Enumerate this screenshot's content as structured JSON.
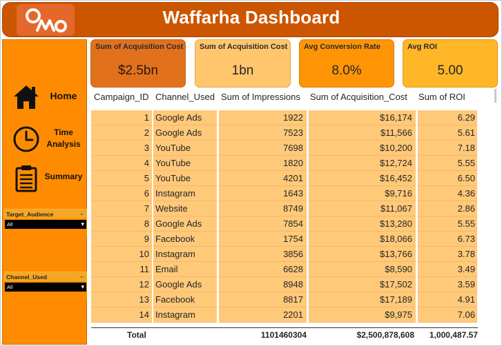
{
  "header": {
    "title": "Waffarha Dashboard",
    "logo_text": "OWO",
    "colors": {
      "header_bg": "#cc5500",
      "sidebar_bg": "#ff8c00"
    }
  },
  "sidebar": {
    "nav": [
      {
        "label": "Home",
        "icon": "house-icon"
      },
      {
        "label": "Time Analysis",
        "icon": "clock-icon"
      },
      {
        "label": "Summary",
        "icon": "clipboard-icon"
      }
    ],
    "slicers": [
      {
        "title": "Target_Audience",
        "value": "All"
      },
      {
        "title": "Channel_Used",
        "value": "All"
      }
    ]
  },
  "cards": [
    {
      "title": "Sum of Acquisition Cost",
      "value": "$2.5bn"
    },
    {
      "title": "Sum of Acquisition Cost",
      "value": "1bn"
    },
    {
      "title": "Avg Conversion Rate",
      "value": "8.0%"
    },
    {
      "title": "Avg ROI",
      "value": "5.00"
    }
  ],
  "table": {
    "columns": [
      "Campaign_ID",
      "Channel_Used",
      "Sum of Impressions",
      "Sum of Acquisition_Cost",
      "Sum of ROI"
    ],
    "rows": [
      [
        "1",
        "Google Ads",
        "1922",
        "$16,174",
        "6.29"
      ],
      [
        "2",
        "Google Ads",
        "7523",
        "$11,566",
        "5.61"
      ],
      [
        "3",
        "YouTube",
        "7698",
        "$10,200",
        "7.18"
      ],
      [
        "4",
        "YouTube",
        "1820",
        "$12,724",
        "5.55"
      ],
      [
        "5",
        "YouTube",
        "4201",
        "$16,452",
        "6.50"
      ],
      [
        "6",
        "Instagram",
        "1643",
        "$9,716",
        "4.36"
      ],
      [
        "7",
        "Website",
        "8749",
        "$11,067",
        "2.86"
      ],
      [
        "8",
        "Google Ads",
        "7854",
        "$13,280",
        "5.55"
      ],
      [
        "9",
        "Facebook",
        "1754",
        "$18,066",
        "6.73"
      ],
      [
        "10",
        "Instagram",
        "3856",
        "$13,766",
        "3.78"
      ],
      [
        "11",
        "Email",
        "6628",
        "$8,590",
        "3.49"
      ],
      [
        "12",
        "Google Ads",
        "8948",
        "$17,502",
        "3.59"
      ],
      [
        "13",
        "Facebook",
        "8817",
        "$17,189",
        "4.91"
      ],
      [
        "14",
        "Instagram",
        "2201",
        "$9,975",
        "7.06"
      ]
    ],
    "total": {
      "label": "Total",
      "impressions": "1101460304",
      "acquisition_cost": "$2,500,878,608",
      "roi": "1,000,487.57"
    }
  }
}
